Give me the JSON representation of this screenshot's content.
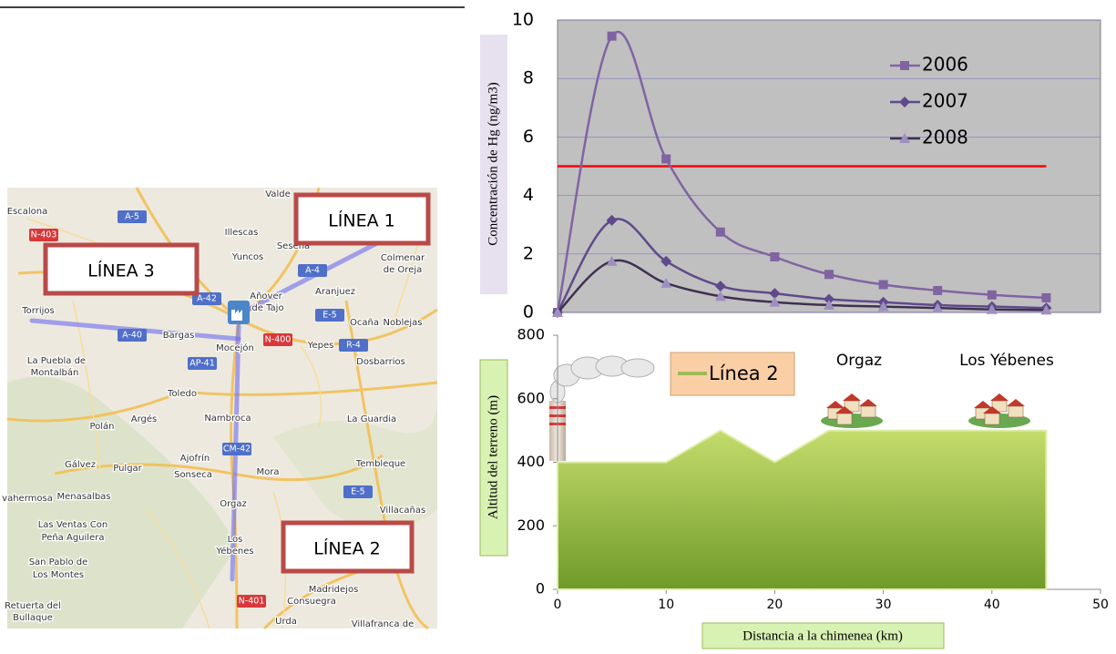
{
  "map": {
    "labels": [
      "Escalona",
      "A-5",
      "N-403",
      "Illescas",
      "Yuncos",
      "Seseña",
      "Colmenar",
      "de Oreja",
      "A-4",
      "Aranjuez",
      "Añover",
      "de Tajo",
      "A-42",
      "Torrijos",
      "Bargas",
      "A-40",
      "Mocejón",
      "N-400",
      "E-5",
      "Ocaña",
      "Noblejas",
      "Yepes",
      "R-4",
      "Dosbarrios",
      "La Puebla de",
      "Montalbán",
      "AP-41",
      "Toledo",
      "Polán",
      "Argés",
      "Nambroca",
      "La Guardia",
      "CM-42",
      "Ajofrín",
      "Gálvez",
      "Pulgar",
      "Sonseca",
      "Mora",
      "Tembleque",
      "vahermosa",
      "Menasalbas",
      "Orgaz",
      "E-5",
      "Villacañas",
      "Las Ventas Con",
      "Peña Aguilera",
      "Los",
      "Yébenes",
      "San Pablo de",
      "Los Montes",
      "Madridejos",
      "Retuerta del",
      "Bullaque",
      "N-401",
      "Consuegra",
      "Urda",
      "Villafranca de",
      "Valde"
    ],
    "lines": [
      "LÍNEA 1",
      "LÍNEA 2",
      "LÍNEA 3"
    ]
  },
  "chart_data": [
    {
      "type": "line",
      "y_label": "Concentración de Hg (ng/m3)",
      "x": [
        0,
        5,
        10,
        15,
        20,
        25,
        30,
        35,
        40,
        45
      ],
      "xlim": [
        0,
        50
      ],
      "ylim": [
        0,
        10
      ],
      "yticks": [
        0,
        2,
        4,
        6,
        8,
        10
      ],
      "grid": true,
      "legend": "upper right",
      "reference_line": {
        "value": 5,
        "color": "#ff0000"
      },
      "series": [
        {
          "name": "2006",
          "color": "#8064a2",
          "marker": "square",
          "values": [
            0,
            9.45,
            5.25,
            2.75,
            1.9,
            1.3,
            0.95,
            0.75,
            0.6,
            0.5
          ]
        },
        {
          "name": "2007",
          "color": "#5f4a8b",
          "marker": "diamond",
          "values": [
            0,
            3.15,
            1.75,
            0.9,
            0.65,
            0.45,
            0.35,
            0.25,
            0.2,
            0.15
          ]
        },
        {
          "name": "2008",
          "color": "#3f3151",
          "marker": "triangle",
          "values": [
            0,
            1.75,
            1.0,
            0.55,
            0.35,
            0.25,
            0.2,
            0.15,
            0.1,
            0.08
          ]
        }
      ]
    },
    {
      "type": "area",
      "x_label": "Distancia a la chimenea (km)",
      "y_label": "Altitud del terreno (m)",
      "x": [
        0,
        10,
        15,
        20,
        25,
        45
      ],
      "xlim": [
        0,
        50
      ],
      "xticks": [
        0,
        10,
        20,
        30,
        40,
        50
      ],
      "ylim": [
        0,
        800
      ],
      "yticks": [
        0,
        200,
        400,
        600,
        800
      ],
      "series": [
        {
          "name": "Línea 2",
          "color": "#9bbb59",
          "values": [
            400,
            400,
            500,
            400,
            500,
            500
          ]
        }
      ],
      "annotations": [
        "Orgaz",
        "Los Yébenes"
      ]
    }
  ]
}
